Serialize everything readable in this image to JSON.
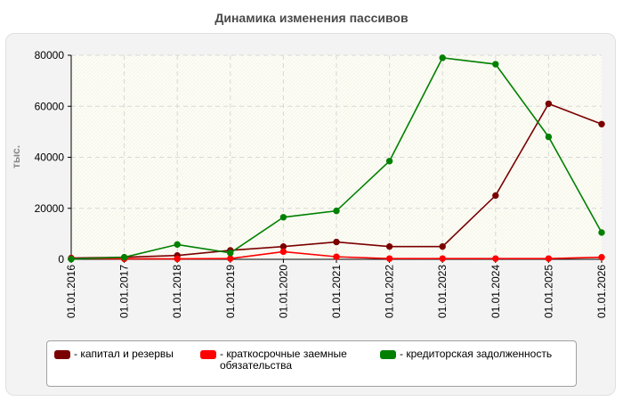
{
  "chart_data": {
    "type": "line",
    "title": "Динамика изменения пассивов",
    "ylabel": "тыс.",
    "xlabel": "",
    "categories": [
      "01.01.2016",
      "01.01.2017",
      "01.01.2018",
      "01.01.2019",
      "01.01.2020",
      "01.01.2021",
      "01.01.2022",
      "01.01.2023",
      "01.01.2024",
      "01.01.2025",
      "01.01.2026"
    ],
    "ylim": [
      0,
      80000
    ],
    "yticks": [
      0,
      20000,
      40000,
      60000,
      80000
    ],
    "grid": true,
    "legend_position": "bottom",
    "series": [
      {
        "name": "- капитал и резервы",
        "color": "#7a0000",
        "values": [
          500,
          800,
          1500,
          3500,
          5000,
          6800,
          5000,
          5000,
          25000,
          61000,
          53000
        ]
      },
      {
        "name": "- краткосрочные заемные обязательства",
        "color": "#ff0000",
        "values": [
          300,
          200,
          200,
          300,
          3000,
          1000,
          300,
          300,
          300,
          300,
          800
        ]
      },
      {
        "name": "- кредиторская задолженность",
        "color": "#008000",
        "values": [
          100,
          800,
          5800,
          2500,
          16500,
          19000,
          38500,
          79000,
          76500,
          48000,
          10500
        ]
      }
    ]
  }
}
